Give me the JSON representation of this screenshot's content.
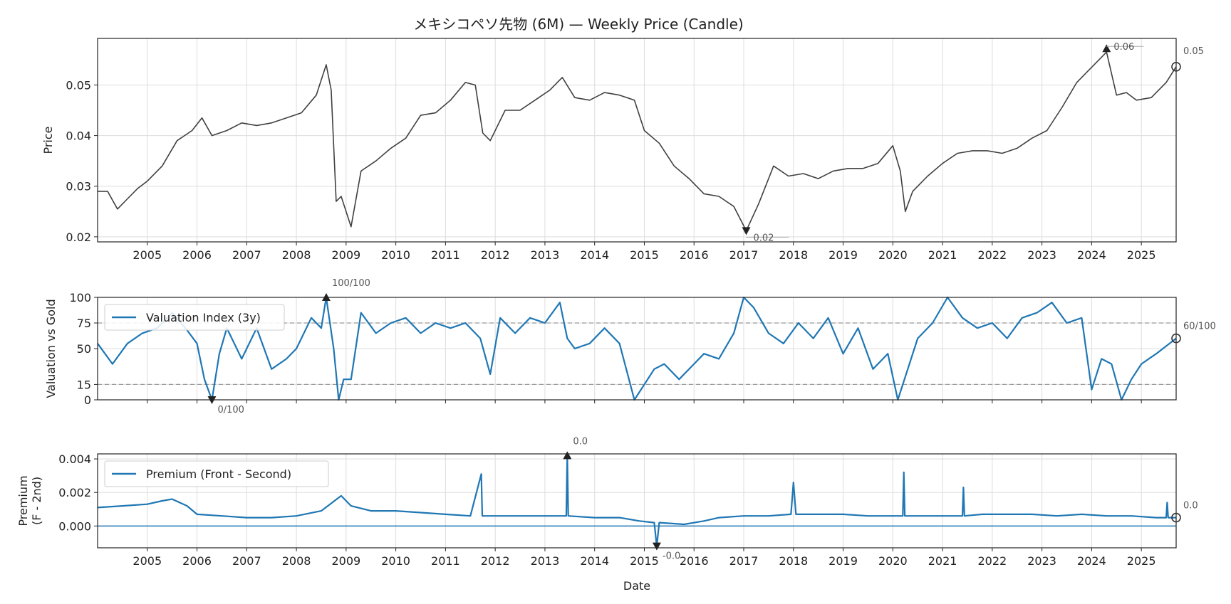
{
  "chart_data": [
    {
      "id": "price",
      "type": "line",
      "title": "メキシコペソ先物 (6M) — Weekly Price (Candle)",
      "ylabel": "Price",
      "xlabel": "",
      "xlim": [
        2004.0,
        2025.7
      ],
      "ylim": [
        0.019,
        0.0592
      ],
      "yticks": [
        0.02,
        0.03,
        0.04,
        0.05
      ],
      "ytick_labels": [
        "0.02",
        "0.03",
        "0.04",
        "0.05"
      ],
      "xticks": [
        2005,
        2006,
        2007,
        2008,
        2009,
        2010,
        2011,
        2012,
        2013,
        2014,
        2015,
        2016,
        2017,
        2018,
        2019,
        2020,
        2021,
        2022,
        2023,
        2024,
        2025
      ],
      "grid": true,
      "color": "#404040",
      "annotations": [
        {
          "label": "0.06",
          "x": 2024.3,
          "y": 0.0572,
          "marker": "triangle-up"
        },
        {
          "label": "0.02",
          "x": 2017.05,
          "y": 0.0212,
          "marker": "triangle-down"
        },
        {
          "label": "0.05",
          "x": 2025.7,
          "y": 0.0536,
          "marker": "circle"
        }
      ],
      "series": [
        {
          "x": [
            2004.0,
            2004.2,
            2004.4,
            2004.6,
            2004.8,
            2005.0,
            2005.3,
            2005.6,
            2005.9,
            2006.1,
            2006.3,
            2006.6,
            2006.9,
            2007.2,
            2007.5,
            2007.8,
            2008.1,
            2008.4,
            2008.6,
            2008.7,
            2008.8,
            2008.9,
            2009.1,
            2009.3,
            2009.6,
            2009.9,
            2010.2,
            2010.5,
            2010.8,
            2011.1,
            2011.4,
            2011.6,
            2011.75,
            2011.9,
            2012.2,
            2012.5,
            2012.8,
            2013.1,
            2013.35,
            2013.6,
            2013.9,
            2014.2,
            2014.5,
            2014.8,
            2015.0,
            2015.3,
            2015.6,
            2015.9,
            2016.2,
            2016.5,
            2016.8,
            2017.05,
            2017.3,
            2017.6,
            2017.9,
            2018.2,
            2018.5,
            2018.8,
            2019.1,
            2019.4,
            2019.7,
            2020.0,
            2020.15,
            2020.25,
            2020.4,
            2020.7,
            2021.0,
            2021.3,
            2021.6,
            2021.9,
            2022.2,
            2022.5,
            2022.8,
            2023.1,
            2023.4,
            2023.7,
            2024.0,
            2024.3,
            2024.5,
            2024.7,
            2024.9,
            2025.2,
            2025.5,
            2025.7
          ],
          "y": [
            0.029,
            0.029,
            0.0255,
            0.0275,
            0.0295,
            0.031,
            0.034,
            0.039,
            0.041,
            0.0435,
            0.04,
            0.041,
            0.0425,
            0.042,
            0.0425,
            0.0435,
            0.0445,
            0.048,
            0.054,
            0.049,
            0.027,
            0.028,
            0.022,
            0.033,
            0.035,
            0.0375,
            0.0395,
            0.044,
            0.0445,
            0.047,
            0.0505,
            0.05,
            0.0405,
            0.039,
            0.045,
            0.045,
            0.047,
            0.049,
            0.0515,
            0.0475,
            0.047,
            0.0485,
            0.048,
            0.047,
            0.041,
            0.0385,
            0.034,
            0.0315,
            0.0285,
            0.028,
            0.026,
            0.0212,
            0.0265,
            0.034,
            0.032,
            0.0325,
            0.0315,
            0.033,
            0.0335,
            0.0335,
            0.0345,
            0.038,
            0.033,
            0.025,
            0.029,
            0.032,
            0.0345,
            0.0365,
            0.037,
            0.037,
            0.0365,
            0.0375,
            0.0395,
            0.041,
            0.0455,
            0.0505,
            0.0535,
            0.0565,
            0.048,
            0.0485,
            0.047,
            0.0475,
            0.0505,
            0.0536
          ]
        }
      ]
    },
    {
      "id": "valuation",
      "type": "line",
      "title": "",
      "ylabel": "Valuation vs Gold",
      "xlabel": "",
      "xlim": [
        2004.0,
        2025.7
      ],
      "ylim": [
        0,
        100
      ],
      "yticks": [
        0,
        15,
        50,
        75,
        100
      ],
      "ytick_labels": [
        "0",
        "15",
        "50",
        "75",
        "100"
      ],
      "xticks": [
        2005,
        2006,
        2007,
        2008,
        2009,
        2010,
        2011,
        2012,
        2013,
        2014,
        2015,
        2016,
        2017,
        2018,
        2019,
        2020,
        2021,
        2022,
        2023,
        2024,
        2025
      ],
      "grid": true,
      "hlines": [
        75,
        15
      ],
      "color": "#1f77b4",
      "legend": {
        "position": "top-left",
        "label": "Valuation Index (3y)"
      },
      "annotations": [
        {
          "label": "100/100",
          "x": 2008.6,
          "y": 100,
          "marker": "triangle-up"
        },
        {
          "label": "0/100",
          "x": 2006.3,
          "y": 0,
          "marker": "triangle-down"
        },
        {
          "label": "60/100",
          "x": 2025.7,
          "y": 60,
          "marker": "circle"
        }
      ],
      "series": [
        {
          "name": "Valuation Index (3y)",
          "x": [
            2004.0,
            2004.3,
            2004.6,
            2004.9,
            2005.2,
            2005.5,
            2005.8,
            2006.0,
            2006.15,
            2006.3,
            2006.45,
            2006.6,
            2006.9,
            2007.2,
            2007.5,
            2007.8,
            2008.0,
            2008.3,
            2008.5,
            2008.6,
            2008.75,
            2008.85,
            2008.95,
            2009.1,
            2009.3,
            2009.6,
            2009.9,
            2010.2,
            2010.5,
            2010.8,
            2011.1,
            2011.4,
            2011.7,
            2011.9,
            2012.1,
            2012.4,
            2012.7,
            2013.0,
            2013.3,
            2013.45,
            2013.6,
            2013.9,
            2014.2,
            2014.5,
            2014.8,
            2015.0,
            2015.2,
            2015.4,
            2015.7,
            2016.0,
            2016.2,
            2016.5,
            2016.8,
            2017.0,
            2017.2,
            2017.5,
            2017.8,
            2018.1,
            2018.4,
            2018.7,
            2019.0,
            2019.3,
            2019.6,
            2019.9,
            2020.1,
            2020.2,
            2020.5,
            2020.8,
            2021.1,
            2021.4,
            2021.7,
            2022.0,
            2022.3,
            2022.6,
            2022.9,
            2023.2,
            2023.5,
            2023.8,
            2024.0,
            2024.2,
            2024.4,
            2024.6,
            2024.8,
            2025.0,
            2025.3,
            2025.7
          ],
          "y": [
            55,
            35,
            55,
            65,
            70,
            85,
            68,
            55,
            20,
            0,
            45,
            70,
            40,
            70,
            30,
            40,
            50,
            80,
            70,
            100,
            50,
            0,
            20,
            20,
            85,
            65,
            75,
            80,
            65,
            75,
            70,
            75,
            60,
            25,
            80,
            65,
            80,
            75,
            95,
            60,
            50,
            55,
            70,
            55,
            0,
            15,
            30,
            35,
            20,
            35,
            45,
            40,
            65,
            100,
            90,
            65,
            55,
            75,
            60,
            80,
            45,
            70,
            30,
            45,
            0,
            15,
            60,
            75,
            100,
            80,
            70,
            75,
            60,
            80,
            85,
            95,
            75,
            80,
            10,
            40,
            35,
            0,
            20,
            35,
            45,
            60
          ]
        }
      ]
    },
    {
      "id": "premium",
      "type": "line",
      "title": "",
      "ylabel": "Premium\n(F - 2nd)",
      "xlabel": "Date",
      "xlim": [
        2004.0,
        2025.7
      ],
      "ylim": [
        -0.0013,
        0.0043
      ],
      "yticks": [
        0.0,
        0.002,
        0.004
      ],
      "ytick_labels": [
        "0.000",
        "0.002",
        "0.004"
      ],
      "xticks": [
        2005,
        2006,
        2007,
        2008,
        2009,
        2010,
        2011,
        2012,
        2013,
        2014,
        2015,
        2016,
        2017,
        2018,
        2019,
        2020,
        2021,
        2022,
        2023,
        2024,
        2025
      ],
      "xtick_labels": [
        "2005",
        "2006",
        "2007",
        "2008",
        "2009",
        "2010",
        "2011",
        "2012",
        "2013",
        "2014",
        "2015",
        "2016",
        "2017",
        "2018",
        "2019",
        "2020",
        "2021",
        "2022",
        "2023",
        "2024",
        "2025"
      ],
      "grid": true,
      "hlines": [
        0.0
      ],
      "color": "#1f77b4",
      "legend": {
        "position": "top-left",
        "label": "Premium (Front - Second)"
      },
      "annotations": [
        {
          "label": "0.0",
          "x": 2013.45,
          "y": 0.0042,
          "marker": "triangle-up"
        },
        {
          "label": "-0.0",
          "x": 2015.25,
          "y": -0.0012,
          "marker": "triangle-down"
        },
        {
          "label": "0.0",
          "x": 2025.7,
          "y": 0.0005,
          "marker": "circle"
        }
      ],
      "series": [
        {
          "name": "Premium (Front - Second)",
          "x": [
            2004.0,
            2004.5,
            2005.0,
            2005.3,
            2005.5,
            2005.8,
            2006.0,
            2006.5,
            2007.0,
            2007.5,
            2008.0,
            2008.5,
            2008.9,
            2009.1,
            2009.5,
            2010.0,
            2010.5,
            2011.0,
            2011.5,
            2011.72,
            2011.74,
            2011.76,
            2012.0,
            2012.5,
            2013.0,
            2013.43,
            2013.45,
            2013.47,
            2014.0,
            2014.5,
            2014.9,
            2015.2,
            2015.25,
            2015.3,
            2015.8,
            2016.2,
            2016.5,
            2017.0,
            2017.5,
            2017.95,
            2018.0,
            2018.05,
            2018.5,
            2019.0,
            2019.5,
            2020.0,
            2020.2,
            2020.22,
            2020.24,
            2020.5,
            2021.0,
            2021.4,
            2021.42,
            2021.44,
            2021.8,
            2022.3,
            2022.8,
            2023.3,
            2023.8,
            2024.3,
            2024.8,
            2025.3,
            2025.5,
            2025.52,
            2025.54,
            2025.7
          ],
          "y": [
            0.0011,
            0.0012,
            0.0013,
            0.0015,
            0.0016,
            0.0012,
            0.0007,
            0.0006,
            0.0005,
            0.0005,
            0.0006,
            0.0009,
            0.0018,
            0.0012,
            0.0009,
            0.0009,
            0.0008,
            0.0007,
            0.0006,
            0.0031,
            0.0006,
            0.0006,
            0.0006,
            0.0006,
            0.0006,
            0.0006,
            0.0042,
            0.0006,
            0.0005,
            0.0005,
            0.0003,
            0.0002,
            -0.0012,
            0.0002,
            0.0001,
            0.0003,
            0.0005,
            0.0006,
            0.0006,
            0.0007,
            0.0026,
            0.0007,
            0.0007,
            0.0007,
            0.0006,
            0.0006,
            0.0006,
            0.0032,
            0.0006,
            0.0006,
            0.0006,
            0.0006,
            0.0023,
            0.0006,
            0.0007,
            0.0007,
            0.0007,
            0.0006,
            0.0007,
            0.0006,
            0.0006,
            0.0005,
            0.0005,
            0.0014,
            0.0005,
            0.0005
          ]
        }
      ]
    }
  ]
}
